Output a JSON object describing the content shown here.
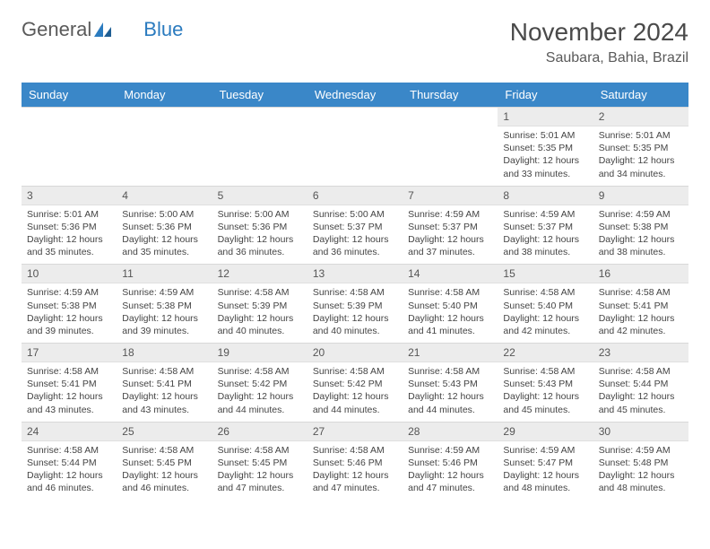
{
  "logo": {
    "text1": "General",
    "text2": "Blue"
  },
  "title": "November 2024",
  "location": "Saubara, Bahia, Brazil",
  "colors": {
    "header_bg": "#3a87c8",
    "header_text": "#ffffff",
    "daynum_bg": "#ececec",
    "text": "#444444",
    "title_color": "#4a4a4a",
    "logo_gray": "#5a5a5a",
    "logo_blue": "#2b7bbf"
  },
  "weekdays": [
    "Sunday",
    "Monday",
    "Tuesday",
    "Wednesday",
    "Thursday",
    "Friday",
    "Saturday"
  ],
  "weeks": [
    [
      {
        "n": "",
        "sr": "",
        "ss": "",
        "dl": ""
      },
      {
        "n": "",
        "sr": "",
        "ss": "",
        "dl": ""
      },
      {
        "n": "",
        "sr": "",
        "ss": "",
        "dl": ""
      },
      {
        "n": "",
        "sr": "",
        "ss": "",
        "dl": ""
      },
      {
        "n": "",
        "sr": "",
        "ss": "",
        "dl": ""
      },
      {
        "n": "1",
        "sr": "Sunrise: 5:01 AM",
        "ss": "Sunset: 5:35 PM",
        "dl": "Daylight: 12 hours and 33 minutes."
      },
      {
        "n": "2",
        "sr": "Sunrise: 5:01 AM",
        "ss": "Sunset: 5:35 PM",
        "dl": "Daylight: 12 hours and 34 minutes."
      }
    ],
    [
      {
        "n": "3",
        "sr": "Sunrise: 5:01 AM",
        "ss": "Sunset: 5:36 PM",
        "dl": "Daylight: 12 hours and 35 minutes."
      },
      {
        "n": "4",
        "sr": "Sunrise: 5:00 AM",
        "ss": "Sunset: 5:36 PM",
        "dl": "Daylight: 12 hours and 35 minutes."
      },
      {
        "n": "5",
        "sr": "Sunrise: 5:00 AM",
        "ss": "Sunset: 5:36 PM",
        "dl": "Daylight: 12 hours and 36 minutes."
      },
      {
        "n": "6",
        "sr": "Sunrise: 5:00 AM",
        "ss": "Sunset: 5:37 PM",
        "dl": "Daylight: 12 hours and 36 minutes."
      },
      {
        "n": "7",
        "sr": "Sunrise: 4:59 AM",
        "ss": "Sunset: 5:37 PM",
        "dl": "Daylight: 12 hours and 37 minutes."
      },
      {
        "n": "8",
        "sr": "Sunrise: 4:59 AM",
        "ss": "Sunset: 5:37 PM",
        "dl": "Daylight: 12 hours and 38 minutes."
      },
      {
        "n": "9",
        "sr": "Sunrise: 4:59 AM",
        "ss": "Sunset: 5:38 PM",
        "dl": "Daylight: 12 hours and 38 minutes."
      }
    ],
    [
      {
        "n": "10",
        "sr": "Sunrise: 4:59 AM",
        "ss": "Sunset: 5:38 PM",
        "dl": "Daylight: 12 hours and 39 minutes."
      },
      {
        "n": "11",
        "sr": "Sunrise: 4:59 AM",
        "ss": "Sunset: 5:38 PM",
        "dl": "Daylight: 12 hours and 39 minutes."
      },
      {
        "n": "12",
        "sr": "Sunrise: 4:58 AM",
        "ss": "Sunset: 5:39 PM",
        "dl": "Daylight: 12 hours and 40 minutes."
      },
      {
        "n": "13",
        "sr": "Sunrise: 4:58 AM",
        "ss": "Sunset: 5:39 PM",
        "dl": "Daylight: 12 hours and 40 minutes."
      },
      {
        "n": "14",
        "sr": "Sunrise: 4:58 AM",
        "ss": "Sunset: 5:40 PM",
        "dl": "Daylight: 12 hours and 41 minutes."
      },
      {
        "n": "15",
        "sr": "Sunrise: 4:58 AM",
        "ss": "Sunset: 5:40 PM",
        "dl": "Daylight: 12 hours and 42 minutes."
      },
      {
        "n": "16",
        "sr": "Sunrise: 4:58 AM",
        "ss": "Sunset: 5:41 PM",
        "dl": "Daylight: 12 hours and 42 minutes."
      }
    ],
    [
      {
        "n": "17",
        "sr": "Sunrise: 4:58 AM",
        "ss": "Sunset: 5:41 PM",
        "dl": "Daylight: 12 hours and 43 minutes."
      },
      {
        "n": "18",
        "sr": "Sunrise: 4:58 AM",
        "ss": "Sunset: 5:41 PM",
        "dl": "Daylight: 12 hours and 43 minutes."
      },
      {
        "n": "19",
        "sr": "Sunrise: 4:58 AM",
        "ss": "Sunset: 5:42 PM",
        "dl": "Daylight: 12 hours and 44 minutes."
      },
      {
        "n": "20",
        "sr": "Sunrise: 4:58 AM",
        "ss": "Sunset: 5:42 PM",
        "dl": "Daylight: 12 hours and 44 minutes."
      },
      {
        "n": "21",
        "sr": "Sunrise: 4:58 AM",
        "ss": "Sunset: 5:43 PM",
        "dl": "Daylight: 12 hours and 44 minutes."
      },
      {
        "n": "22",
        "sr": "Sunrise: 4:58 AM",
        "ss": "Sunset: 5:43 PM",
        "dl": "Daylight: 12 hours and 45 minutes."
      },
      {
        "n": "23",
        "sr": "Sunrise: 4:58 AM",
        "ss": "Sunset: 5:44 PM",
        "dl": "Daylight: 12 hours and 45 minutes."
      }
    ],
    [
      {
        "n": "24",
        "sr": "Sunrise: 4:58 AM",
        "ss": "Sunset: 5:44 PM",
        "dl": "Daylight: 12 hours and 46 minutes."
      },
      {
        "n": "25",
        "sr": "Sunrise: 4:58 AM",
        "ss": "Sunset: 5:45 PM",
        "dl": "Daylight: 12 hours and 46 minutes."
      },
      {
        "n": "26",
        "sr": "Sunrise: 4:58 AM",
        "ss": "Sunset: 5:45 PM",
        "dl": "Daylight: 12 hours and 47 minutes."
      },
      {
        "n": "27",
        "sr": "Sunrise: 4:58 AM",
        "ss": "Sunset: 5:46 PM",
        "dl": "Daylight: 12 hours and 47 minutes."
      },
      {
        "n": "28",
        "sr": "Sunrise: 4:59 AM",
        "ss": "Sunset: 5:46 PM",
        "dl": "Daylight: 12 hours and 47 minutes."
      },
      {
        "n": "29",
        "sr": "Sunrise: 4:59 AM",
        "ss": "Sunset: 5:47 PM",
        "dl": "Daylight: 12 hours and 48 minutes."
      },
      {
        "n": "30",
        "sr": "Sunrise: 4:59 AM",
        "ss": "Sunset: 5:48 PM",
        "dl": "Daylight: 12 hours and 48 minutes."
      }
    ]
  ]
}
